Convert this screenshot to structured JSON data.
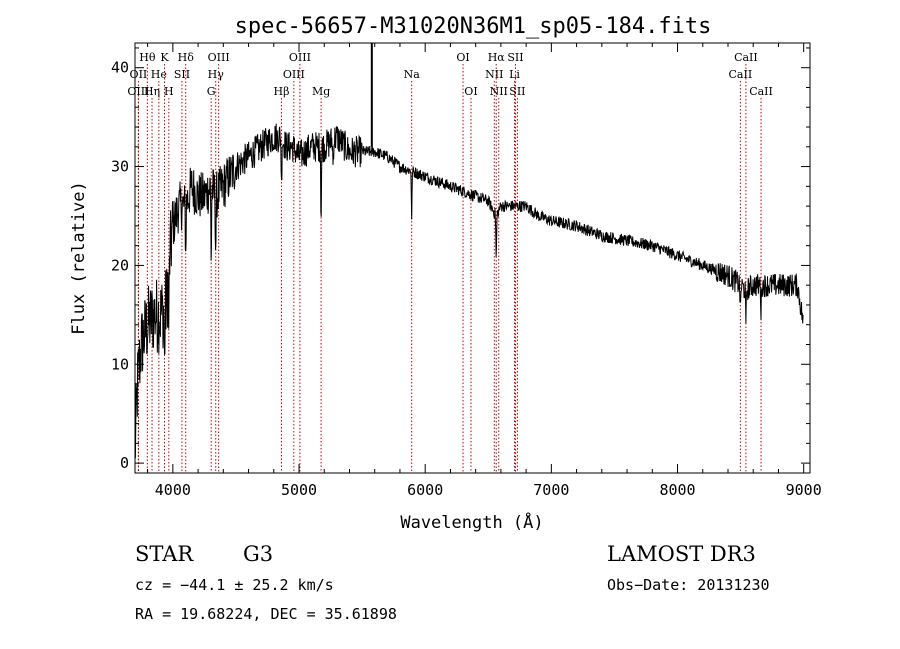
{
  "chart_data": {
    "type": "line",
    "title": "spec-56657-M31020N36M1_sp05-184.fits",
    "xlabel": "Wavelength (Å)",
    "ylabel": "Flux (relative)",
    "xlim": [
      3700,
      9050
    ],
    "ylim": [
      -1,
      42.5
    ],
    "xticks": [
      4000,
      5000,
      6000,
      7000,
      8000,
      9000
    ],
    "yticks": [
      0,
      10,
      20,
      30,
      40
    ],
    "spectrum_anchors": {
      "x": [
        3700,
        3720,
        3750,
        3800,
        3850,
        3900,
        3950,
        3970,
        4000,
        4050,
        4100,
        4150,
        4200,
        4250,
        4300,
        4340,
        4400,
        4500,
        4600,
        4700,
        4800,
        4850,
        4900,
        4950,
        5000,
        5100,
        5200,
        5300,
        5400,
        5500,
        5600,
        5700,
        5800,
        5900,
        6000,
        6100,
        6200,
        6300,
        6400,
        6500,
        6563,
        6600,
        6700,
        6800,
        6900,
        7000,
        7200,
        7400,
        7600,
        7800,
        8000,
        8200,
        8400,
        8500,
        8540,
        8600,
        8700,
        8800,
        8900,
        8950,
        9000
      ],
      "y": [
        1,
        8,
        12,
        14,
        15,
        15,
        16,
        20,
        24,
        26,
        26,
        28,
        27,
        27,
        28,
        27,
        28,
        30,
        31,
        32,
        33,
        33,
        32,
        32,
        31,
        32,
        32,
        33,
        31.5,
        31.5,
        31.5,
        31,
        30,
        29.5,
        29,
        28.5,
        28,
        27.5,
        27,
        26.5,
        25,
        26,
        26,
        26,
        25,
        24.5,
        24,
        23,
        22.5,
        22,
        21,
        20,
        19,
        18,
        17.5,
        18,
        18,
        18,
        18,
        18,
        14
      ]
    },
    "features": [
      {
        "name": "Hθ",
        "wl": 3798,
        "row": 1
      },
      {
        "name": "OII",
        "wl": 3727,
        "row": 2
      },
      {
        "name": "OIII",
        "wl": 3727,
        "row": 3
      },
      {
        "name": "He",
        "wl": 3889,
        "row": 2
      },
      {
        "name": "Hη",
        "wl": 3835,
        "row": 3
      },
      {
        "name": "K",
        "wl": 3934,
        "row": 1
      },
      {
        "name": "H",
        "wl": 3968,
        "row": 3
      },
      {
        "name": "SII",
        "wl": 4072,
        "row": 2
      },
      {
        "name": "Hδ",
        "wl": 4102,
        "row": 1
      },
      {
        "name": "OIII",
        "wl": 4363,
        "row": 1
      },
      {
        "name": "Hγ",
        "wl": 4340,
        "row": 2
      },
      {
        "name": "G",
        "wl": 4304,
        "row": 3
      },
      {
        "name": "Hβ",
        "wl": 4861,
        "row": 3
      },
      {
        "name": "OIII",
        "wl": 4959,
        "row": 2
      },
      {
        "name": "OIII",
        "wl": 5007,
        "row": 1
      },
      {
        "name": "Mg",
        "wl": 5175,
        "row": 3
      },
      {
        "name": "Na",
        "wl": 5893,
        "row": 2
      },
      {
        "name": "OI",
        "wl": 6300,
        "row": 1
      },
      {
        "name": "OI",
        "wl": 6363,
        "row": 3
      },
      {
        "name": "Hα",
        "wl": 6563,
        "row": 1
      },
      {
        "name": "NII",
        "wl": 6548,
        "row": 2
      },
      {
        "name": "NII",
        "wl": 6583,
        "row": 3
      },
      {
        "name": "SII",
        "wl": 6716,
        "row": 1
      },
      {
        "name": "Li",
        "wl": 6708,
        "row": 2
      },
      {
        "name": "SII",
        "wl": 6731,
        "row": 3
      },
      {
        "name": "CaII",
        "wl": 8542,
        "row": 1
      },
      {
        "name": "CaII",
        "wl": 8498,
        "row": 2
      },
      {
        "name": "CaII",
        "wl": 8662,
        "row": 3
      }
    ],
    "colors": {
      "spectrum": "#000000",
      "feature_line": "#cc0000",
      "axis": "#000000"
    }
  },
  "info": {
    "obj_class": "STAR",
    "subclass": "G3",
    "survey": "LAMOST DR3",
    "cz": "cz = −44.1 ± 25.2 km/s",
    "obs_date": "Obs−Date: 20131230",
    "radec": "RA =  19.68224, DEC =  35.61898"
  }
}
